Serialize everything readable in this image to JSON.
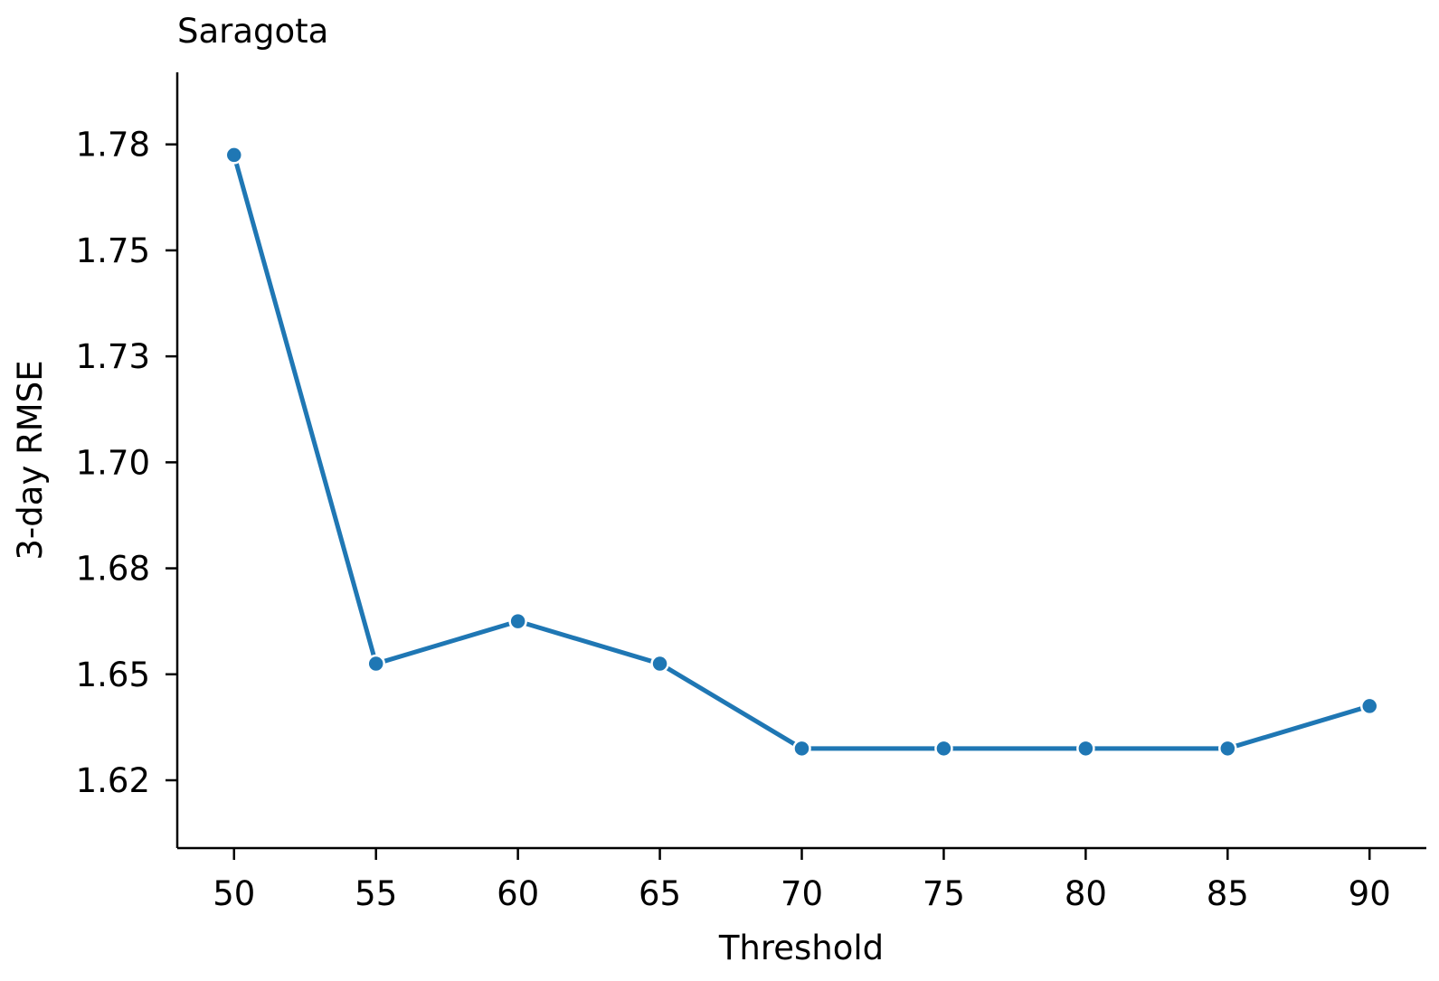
{
  "chart_data": {
    "type": "line",
    "title": "Saragota",
    "xlabel": "Threshold",
    "ylabel": "3-day RMSE",
    "x": [
      50,
      55,
      60,
      65,
      70,
      75,
      80,
      85,
      90
    ],
    "series": [
      {
        "values": [
          1.7725,
          1.6525,
          1.6625,
          1.6525,
          1.6325,
          1.6325,
          1.6325,
          1.6325,
          1.6425
        ]
      }
    ],
    "xticks": [
      50,
      55,
      60,
      65,
      70,
      75,
      80,
      85,
      90
    ],
    "xtick_labels": [
      "50",
      "55",
      "60",
      "65",
      "70",
      "75",
      "80",
      "85",
      "90"
    ],
    "yticks": [
      1.625,
      1.65,
      1.675,
      1.7,
      1.725,
      1.75,
      1.775
    ],
    "ytick_labels": [
      "1.62",
      "1.65",
      "1.68",
      "1.70",
      "1.73",
      "1.75",
      "1.78"
    ],
    "xlim": [
      48,
      92
    ],
    "ylim": [
      1.609,
      1.792
    ],
    "grid": false,
    "line_color": "#1f77b4",
    "marker_edge_color": "#ffffff"
  }
}
